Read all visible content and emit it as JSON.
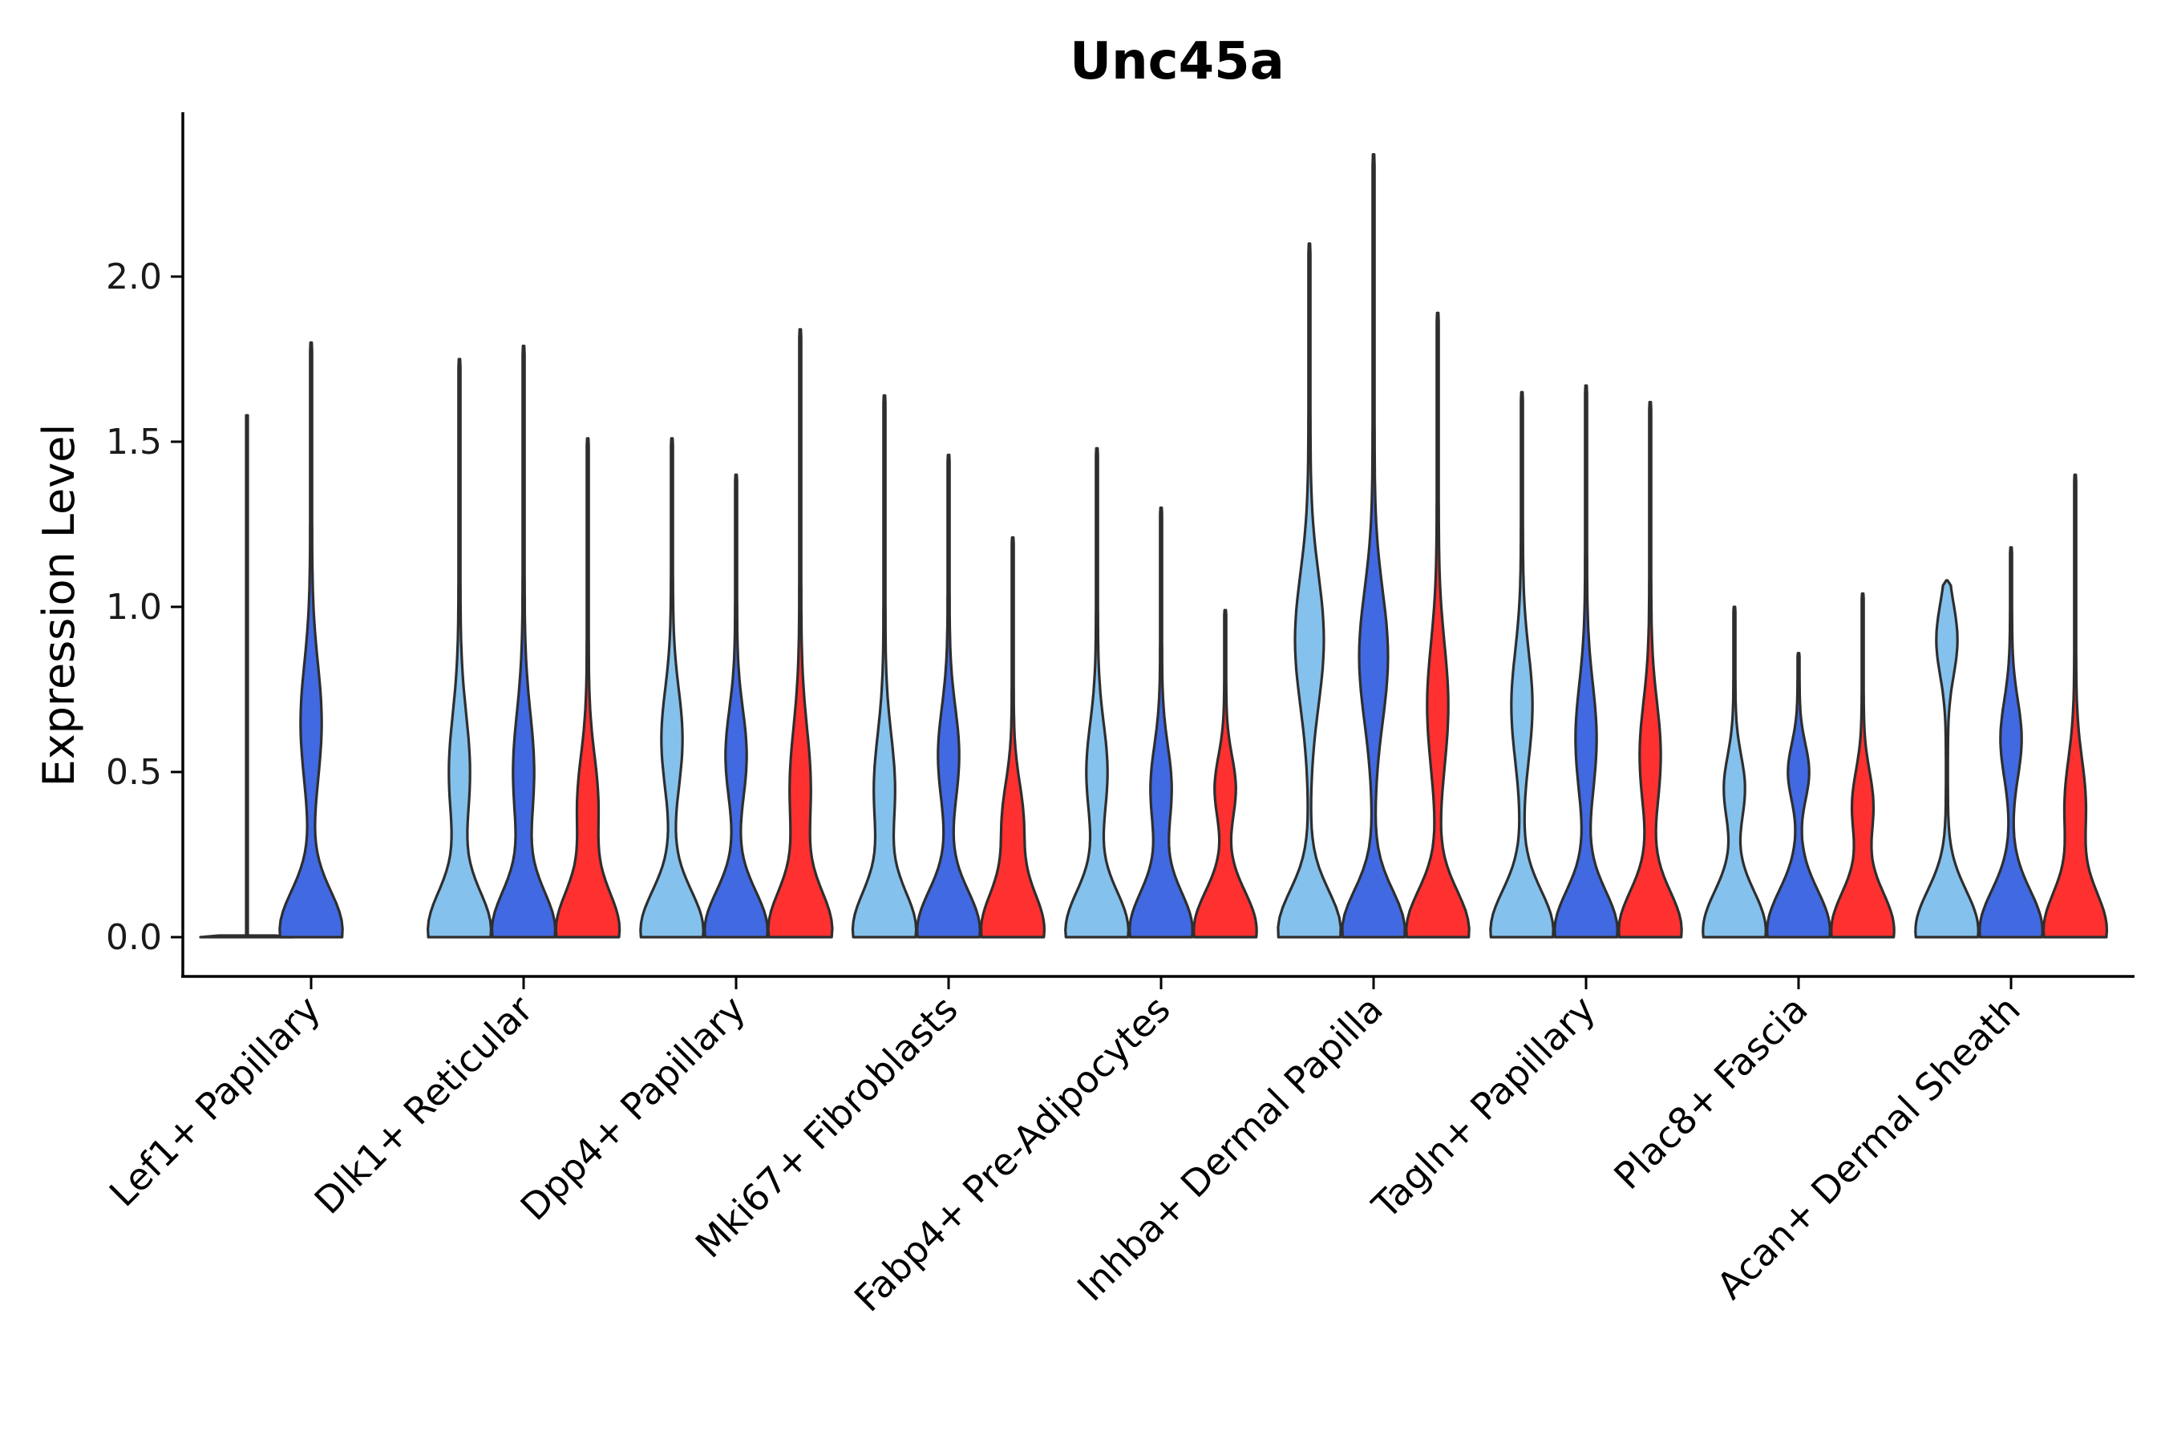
{
  "chart_data": {
    "type": "violin",
    "title": "Unc45a",
    "xlabel": "",
    "ylabel": "Expression Level",
    "ylim": [
      -0.12,
      2.5
    ],
    "yticks": [
      0.0,
      0.5,
      1.0,
      1.5,
      2.0
    ],
    "ytick_labels": [
      "0.0",
      "0.5",
      "1.0",
      "1.5",
      "2.0"
    ],
    "grid": false,
    "legend": "none",
    "categories": [
      "Lef1+ Papillary",
      "Dlk1+ Reticular",
      "Dpp4+ Papillary",
      "Mki67+ Fibroblasts",
      "Fabp4+ Pre-Adipocytes",
      "Inhba+ Dermal Papilla",
      "Tagln+ Papillary",
      "Plac8+ Fascia",
      "Acan+ Dermal Sheath"
    ],
    "group_colors": [
      "#85c1ed",
      "#4169e1",
      "#ff3030"
    ],
    "series": [
      {
        "name": "light blue group",
        "color": "#85c1ed",
        "max_values": [
          1.58,
          1.75,
          1.51,
          1.64,
          1.48,
          2.1,
          1.65,
          1.0,
          1.08
        ],
        "mode_values": [
          0.0,
          0.5,
          0.6,
          0.45,
          0.5,
          0.9,
          0.7,
          0.45,
          0.9
        ]
      },
      {
        "name": "blue group",
        "color": "#4169e1",
        "max_values": [
          1.8,
          1.79,
          1.4,
          1.46,
          1.3,
          2.37,
          1.67,
          0.86,
          1.18
        ],
        "mode_values": [
          0.65,
          0.5,
          0.55,
          0.55,
          0.45,
          0.85,
          0.6,
          0.5,
          0.6
        ]
      },
      {
        "name": "red group",
        "color": "#ff3030",
        "max_values": [
          null,
          1.51,
          1.84,
          1.21,
          0.99,
          1.89,
          1.62,
          1.04,
          1.4
        ],
        "mode_values": [
          null,
          0.4,
          0.45,
          0.35,
          0.45,
          0.7,
          0.55,
          0.4,
          0.4
        ]
      }
    ]
  }
}
